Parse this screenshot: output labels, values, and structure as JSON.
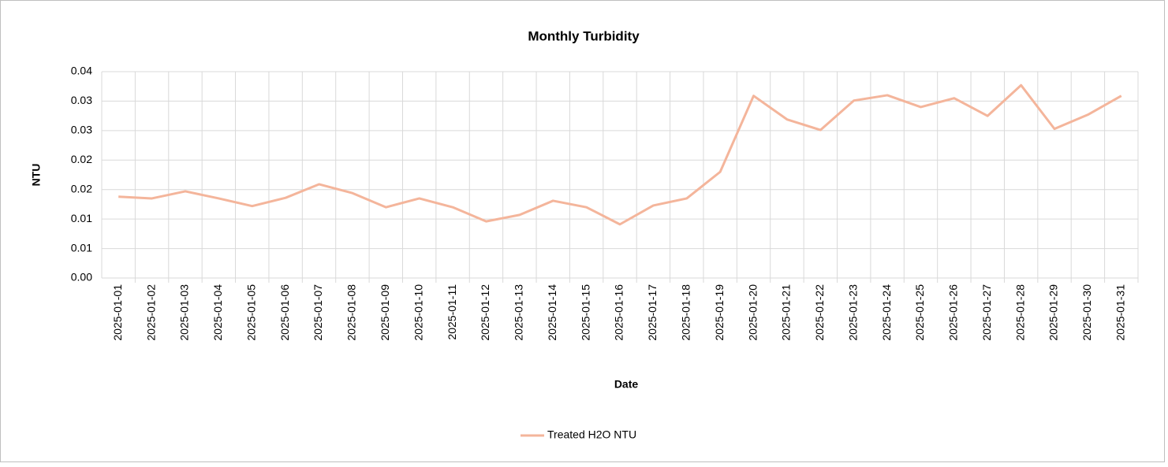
{
  "chart_data": {
    "type": "line",
    "title": "Monthly Turbidity",
    "x_label": "Date",
    "y_label": "NTU",
    "categories": [
      "2025-01-01",
      "2025-01-02",
      "2025-01-03",
      "2025-01-04",
      "2025-01-05",
      "2025-01-06",
      "2025-01-07",
      "2025-01-08",
      "2025-01-09",
      "2025-01-10",
      "2025-01-11",
      "2025-01-12",
      "2025-01-13",
      "2025-01-14",
      "2025-01-15",
      "2025-01-16",
      "2025-01-17",
      "2025-01-18",
      "2025-01-19",
      "2025-01-20",
      "2025-01-21",
      "2025-01-22",
      "2025-01-23",
      "2025-01-24",
      "2025-01-25",
      "2025-01-26",
      "2025-01-27",
      "2025-01-28",
      "2025-01-29",
      "2025-01-30",
      "2025-01-31"
    ],
    "series": [
      {
        "name": "Treated H2O NTU",
        "color": "#f4b59b",
        "values": [
          0.0138,
          0.0135,
          0.0147,
          0.0135,
          0.0122,
          0.0136,
          0.0159,
          0.0144,
          0.012,
          0.0135,
          0.012,
          0.0096,
          0.0107,
          0.0131,
          0.012,
          0.0091,
          0.0123,
          0.0135,
          0.018,
          0.0309,
          0.0269,
          0.0251,
          0.0301,
          0.031,
          0.029,
          0.0305,
          0.0275,
          0.0327,
          0.0253,
          0.0277,
          0.0309
        ]
      }
    ],
    "ylim": [
      0,
      0.035
    ],
    "yticks": [
      {
        "value": 0,
        "label": "0.00"
      },
      {
        "value": 0.005,
        "label": "0.01"
      },
      {
        "value": 0.01,
        "label": "0.01"
      },
      {
        "value": 0.015,
        "label": "0.02"
      },
      {
        "value": 0.02,
        "label": "0.02"
      },
      {
        "value": 0.025,
        "label": "0.03"
      },
      {
        "value": 0.03,
        "label": "0.03"
      },
      {
        "value": 0.035,
        "label": "0.04"
      }
    ],
    "grid": true,
    "legend": "bottom"
  }
}
